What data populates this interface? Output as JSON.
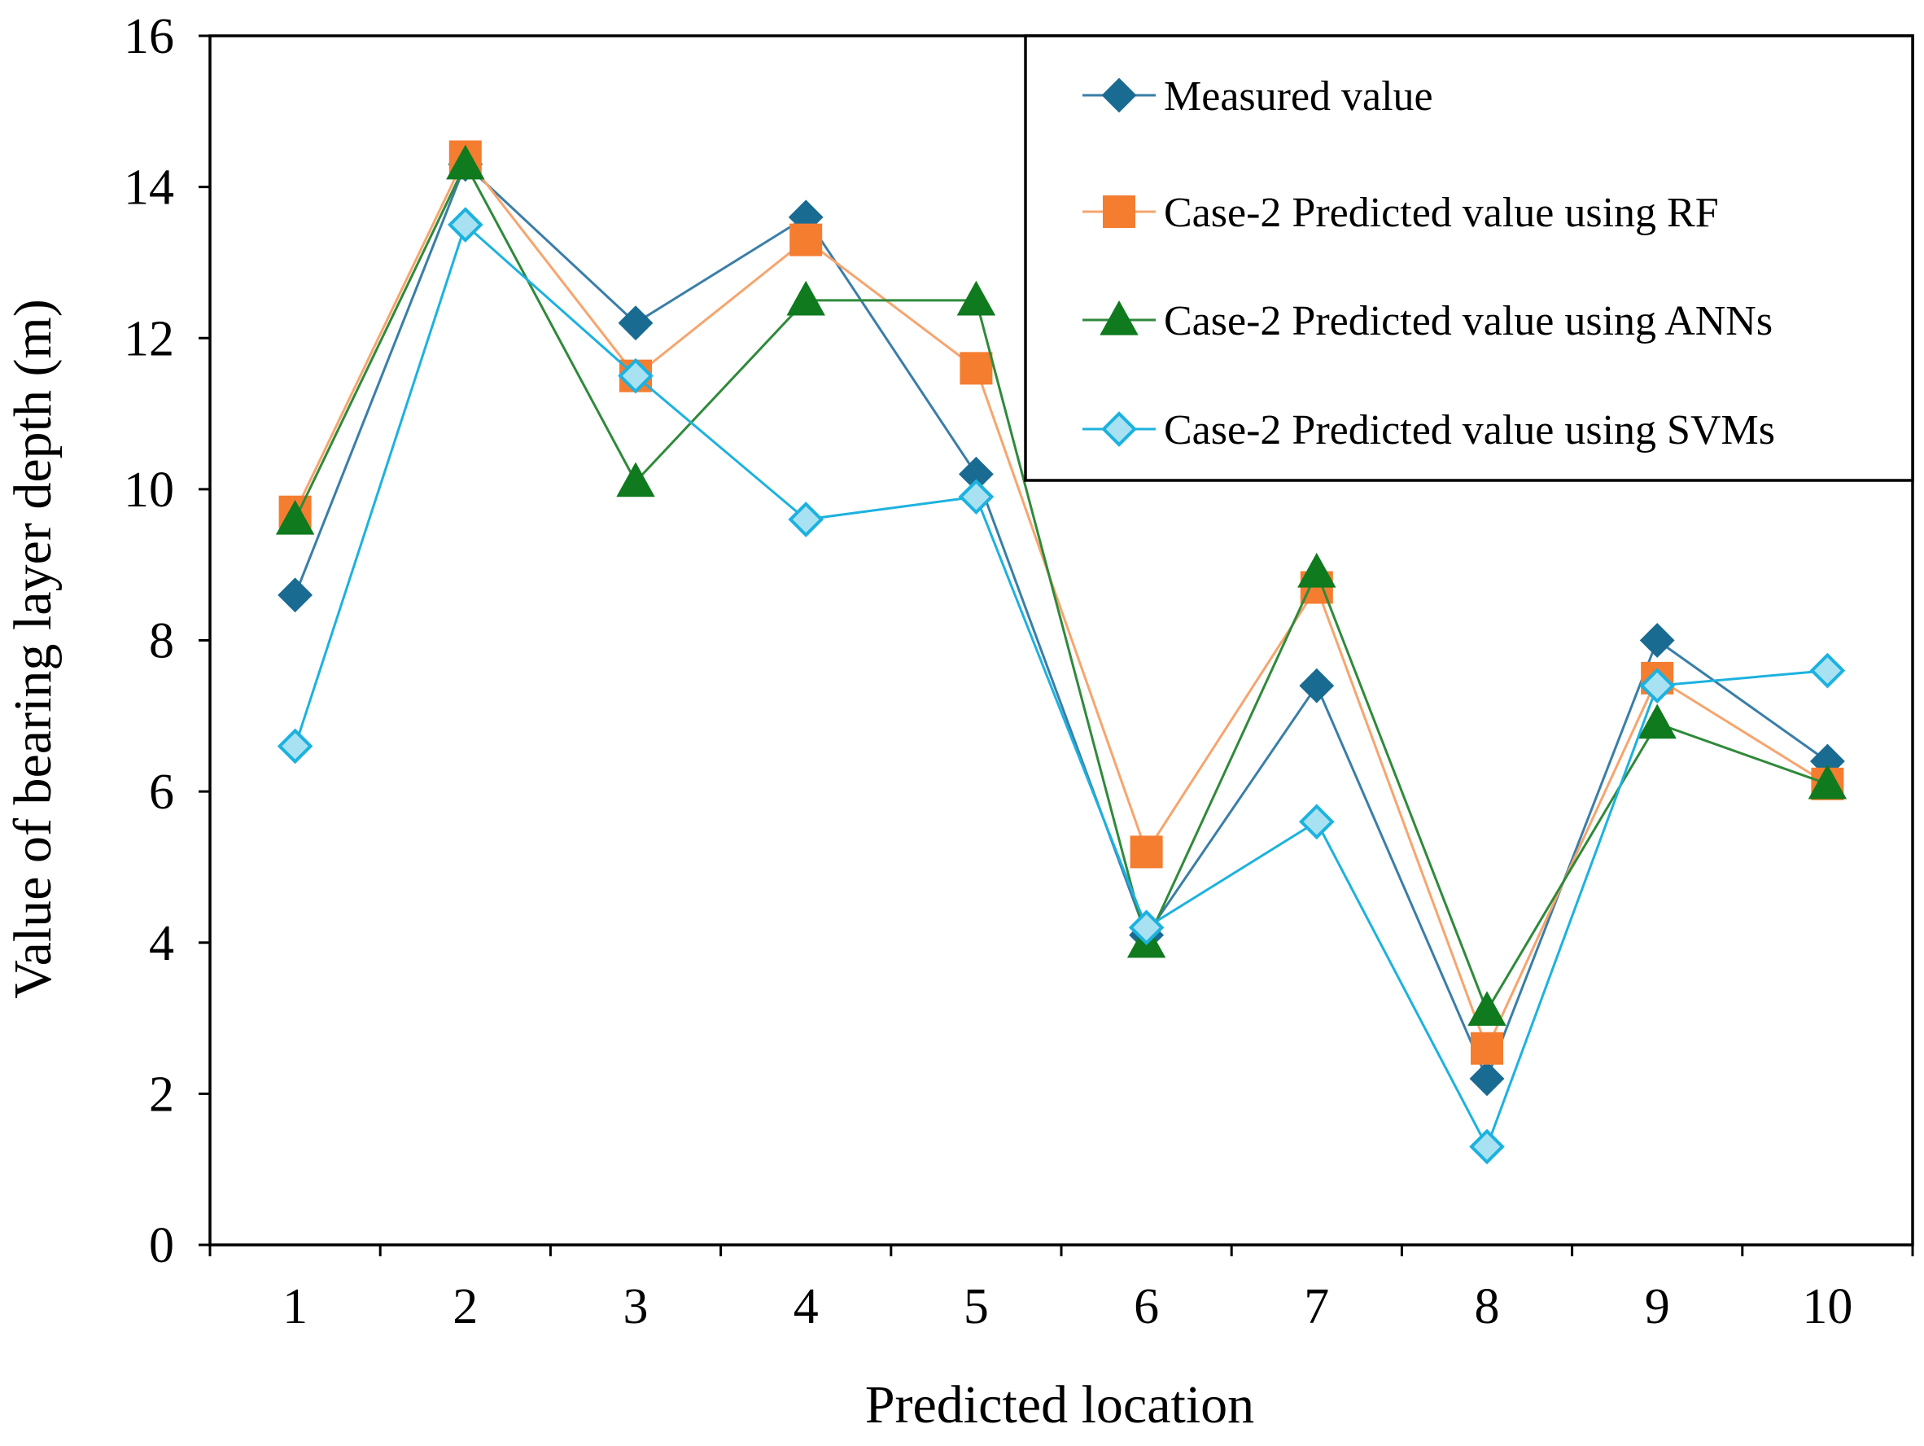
{
  "chart_data": {
    "type": "line",
    "title": "",
    "xlabel": "Predicted location",
    "ylabel": "Value of bearing layer depth (m)",
    "ylim": [
      0,
      16
    ],
    "yticks": [
      0,
      2,
      4,
      6,
      8,
      10,
      12,
      14,
      16
    ],
    "categories": [
      "1",
      "2",
      "3",
      "4",
      "5",
      "6",
      "7",
      "8",
      "9",
      "10"
    ],
    "grid": false,
    "legend_position": "top-right",
    "series": [
      {
        "name": "Measured value",
        "marker": "diamond",
        "color": "#1a6b91",
        "line_color": "#3a7ea8",
        "values": [
          8.6,
          14.3,
          12.2,
          13.6,
          10.2,
          4.1,
          7.4,
          2.2,
          8.0,
          6.4
        ]
      },
      {
        "name": "Case-2 Predicted value using RF",
        "marker": "square",
        "color": "#f47d30",
        "line_color": "#f6a56e",
        "values": [
          9.7,
          14.4,
          11.5,
          13.3,
          11.6,
          5.2,
          8.7,
          2.6,
          7.5,
          6.1
        ]
      },
      {
        "name": "Case-2 Predicted value using ANNs",
        "marker": "triangle",
        "color": "#0f7a1e",
        "line_color": "#2f8a3a",
        "values": [
          9.6,
          14.3,
          10.1,
          12.5,
          12.5,
          4.0,
          8.9,
          3.1,
          6.9,
          6.1
        ]
      },
      {
        "name": "Case-2 Predicted value using SVMs",
        "marker": "open-diamond",
        "color": "#1cb2df",
        "fill": "#a8e2f2",
        "line_color": "#1cb2df",
        "values": [
          6.6,
          13.5,
          11.5,
          9.6,
          9.9,
          4.2,
          5.6,
          1.3,
          7.4,
          7.6
        ]
      }
    ]
  }
}
